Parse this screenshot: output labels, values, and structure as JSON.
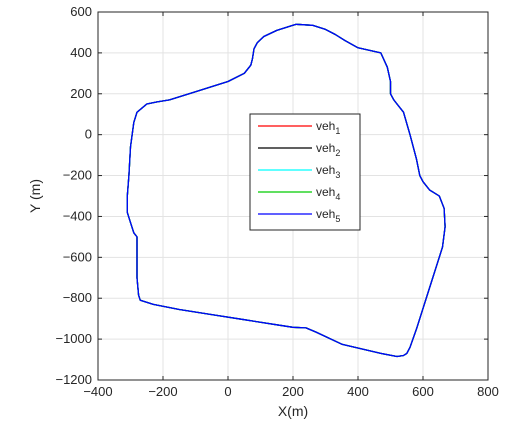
{
  "chart_data": {
    "type": "line",
    "xlabel": "X(m)",
    "ylabel": "Y (m)",
    "xlim": [
      -400,
      800
    ],
    "ylim": [
      -1200,
      600
    ],
    "xticks": [
      -400,
      -200,
      0,
      200,
      400,
      600,
      800
    ],
    "yticks": [
      -1200,
      -1000,
      -800,
      -600,
      -400,
      -200,
      0,
      200,
      400,
      600
    ],
    "grid": true,
    "legend_position": "center",
    "series": [
      {
        "name": "veh",
        "subscript": "1",
        "color": "#ff0000"
      },
      {
        "name": "veh",
        "subscript": "2",
        "color": "#000000"
      },
      {
        "name": "veh",
        "subscript": "3",
        "color": "#00ffff"
      },
      {
        "name": "veh",
        "subscript": "4",
        "color": "#00cc00"
      },
      {
        "name": "veh",
        "subscript": "5",
        "color": "#0000ff"
      }
    ],
    "path": {
      "x": [
        210,
        260,
        300,
        330,
        360,
        400,
        470,
        490,
        500,
        500,
        510,
        520,
        540,
        560,
        580,
        590,
        600,
        620,
        650,
        665,
        668,
        660,
        640,
        620,
        600,
        580,
        560,
        550,
        540,
        520,
        470,
        350,
        270,
        240,
        200,
        150,
        50,
        -50,
        -150,
        -230,
        -270,
        -275,
        -280,
        -280,
        -280,
        -290,
        -300,
        -310,
        -310,
        -305,
        -300,
        -290,
        -280,
        -250,
        -220,
        -180,
        -100,
        0,
        50,
        70,
        75,
        80,
        90,
        110,
        150,
        200,
        210
      ],
      "y": [
        540,
        535,
        515,
        490,
        460,
        425,
        400,
        330,
        260,
        200,
        170,
        150,
        110,
        0,
        -120,
        -200,
        -230,
        -270,
        -300,
        -360,
        -450,
        -550,
        -650,
        -750,
        -850,
        -950,
        -1040,
        -1070,
        -1080,
        -1085,
        -1070,
        -1025,
        -965,
        -945,
        -942,
        -930,
        -905,
        -880,
        -855,
        -830,
        -810,
        -785,
        -700,
        -600,
        -500,
        -480,
        -430,
        -380,
        -300,
        -200,
        -60,
        60,
        110,
        150,
        160,
        170,
        210,
        260,
        300,
        340,
        370,
        420,
        450,
        480,
        510,
        535,
        540
      ]
    }
  }
}
